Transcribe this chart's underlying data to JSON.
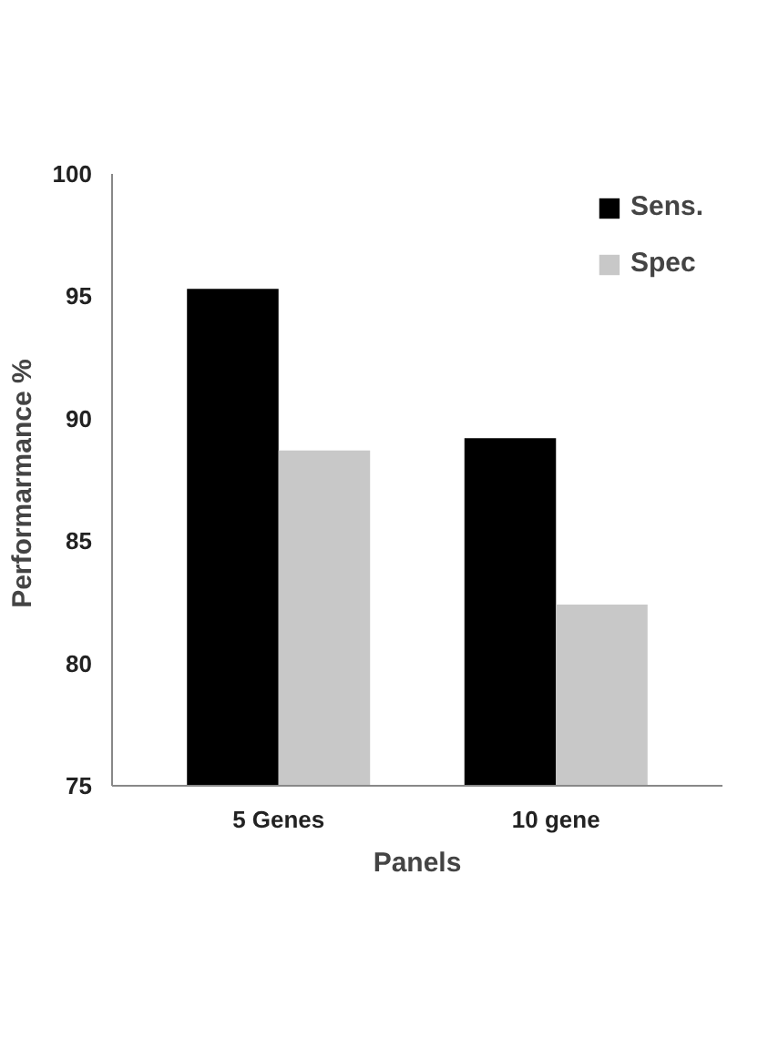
{
  "chart_data": {
    "type": "bar",
    "xlabel": "Panels",
    "ylabel": "Performarmance  %",
    "categories": [
      "5 Genes",
      "10 gene"
    ],
    "series": [
      {
        "name": "Sens.",
        "color": "#000000",
        "values": [
          95.3,
          89.2
        ]
      },
      {
        "name": "Spec",
        "color": "#c8c8c8",
        "values": [
          88.7,
          82.4
        ]
      }
    ],
    "ylim": [
      75,
      100
    ],
    "yticks": [
      75,
      80,
      85,
      90,
      95,
      100
    ],
    "grid": false,
    "legend": "top right"
  }
}
